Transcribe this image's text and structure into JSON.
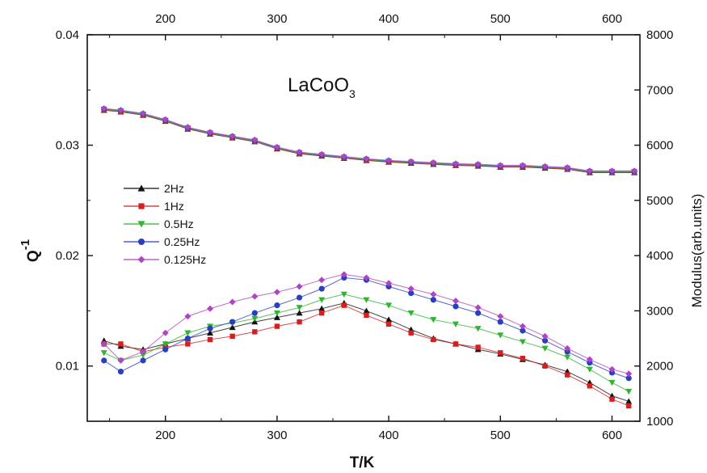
{
  "chart_data": {
    "type": "scatter",
    "title_main": "LaCoO",
    "title_sub": "3",
    "xlabel": "T/K",
    "ylabel_main": "Q",
    "ylabel_sup": "-1",
    "y2label": "Modulus(arb.units)",
    "xlim": [
      130,
      625
    ],
    "ylim": [
      0.005,
      0.04
    ],
    "y2lim": [
      1000,
      8000
    ],
    "xticks": [
      "200",
      "300",
      "400",
      "500",
      "600"
    ],
    "yticks": [
      "0.01",
      "0.02",
      "0.03",
      "0.04"
    ],
    "y2ticks": [
      "1000",
      "2000",
      "3000",
      "4000",
      "5000",
      "6000",
      "7000",
      "8000"
    ],
    "grid": false,
    "legend_position": "center-left",
    "modulus_points": [
      [
        145,
        6650
      ],
      [
        160,
        6620
      ],
      [
        180,
        6560
      ],
      [
        200,
        6450
      ],
      [
        220,
        6310
      ],
      [
        240,
        6220
      ],
      [
        260,
        6150
      ],
      [
        280,
        6080
      ],
      [
        300,
        5950
      ],
      [
        320,
        5860
      ],
      [
        340,
        5820
      ],
      [
        360,
        5780
      ],
      [
        380,
        5740
      ],
      [
        400,
        5710
      ],
      [
        420,
        5690
      ],
      [
        440,
        5670
      ],
      [
        460,
        5650
      ],
      [
        480,
        5640
      ],
      [
        500,
        5620
      ],
      [
        520,
        5620
      ],
      [
        540,
        5600
      ],
      [
        560,
        5580
      ],
      [
        580,
        5520
      ],
      [
        600,
        5520
      ],
      [
        620,
        5520
      ]
    ],
    "series": [
      {
        "name": "2Hz",
        "color": "#111111",
        "marker": "triangle-up",
        "points": [
          [
            145,
            0.0123
          ],
          [
            160,
            0.0118
          ],
          [
            180,
            0.0115
          ],
          [
            200,
            0.012
          ],
          [
            220,
            0.0125
          ],
          [
            240,
            0.013
          ],
          [
            260,
            0.0135
          ],
          [
            280,
            0.014
          ],
          [
            300,
            0.0144
          ],
          [
            320,
            0.0148
          ],
          [
            340,
            0.0152
          ],
          [
            360,
            0.0157
          ],
          [
            380,
            0.015
          ],
          [
            400,
            0.0142
          ],
          [
            420,
            0.0133
          ],
          [
            440,
            0.0125
          ],
          [
            460,
            0.012
          ],
          [
            480,
            0.0115
          ],
          [
            500,
            0.0111
          ],
          [
            520,
            0.0106
          ],
          [
            540,
            0.0101
          ],
          [
            560,
            0.0095
          ],
          [
            580,
            0.0085
          ],
          [
            600,
            0.0073
          ],
          [
            615,
            0.0068
          ]
        ]
      },
      {
        "name": "1Hz",
        "color": "#d42020",
        "marker": "square",
        "points": [
          [
            145,
            0.012
          ],
          [
            160,
            0.012
          ],
          [
            180,
            0.0113
          ],
          [
            200,
            0.0117
          ],
          [
            220,
            0.012
          ],
          [
            240,
            0.0124
          ],
          [
            260,
            0.0127
          ],
          [
            280,
            0.0131
          ],
          [
            300,
            0.0136
          ],
          [
            320,
            0.014
          ],
          [
            340,
            0.0148
          ],
          [
            360,
            0.0155
          ],
          [
            380,
            0.0146
          ],
          [
            400,
            0.0138
          ],
          [
            420,
            0.013
          ],
          [
            440,
            0.0124
          ],
          [
            460,
            0.012
          ],
          [
            480,
            0.0117
          ],
          [
            500,
            0.0112
          ],
          [
            520,
            0.0107
          ],
          [
            540,
            0.01
          ],
          [
            560,
            0.0092
          ],
          [
            580,
            0.0082
          ],
          [
            600,
            0.007
          ],
          [
            615,
            0.0064
          ]
        ]
      },
      {
        "name": "0.5Hz",
        "color": "#2fb52f",
        "marker": "triangle-down",
        "points": [
          [
            145,
            0.0112
          ],
          [
            160,
            0.0105
          ],
          [
            180,
            0.011
          ],
          [
            200,
            0.012
          ],
          [
            220,
            0.013
          ],
          [
            240,
            0.0136
          ],
          [
            260,
            0.0139
          ],
          [
            280,
            0.0143
          ],
          [
            300,
            0.0148
          ],
          [
            320,
            0.0153
          ],
          [
            340,
            0.016
          ],
          [
            360,
            0.0165
          ],
          [
            380,
            0.016
          ],
          [
            400,
            0.0155
          ],
          [
            420,
            0.0148
          ],
          [
            440,
            0.0142
          ],
          [
            460,
            0.0138
          ],
          [
            480,
            0.0134
          ],
          [
            500,
            0.0128
          ],
          [
            520,
            0.0122
          ],
          [
            540,
            0.0116
          ],
          [
            560,
            0.0108
          ],
          [
            580,
            0.0097
          ],
          [
            600,
            0.0085
          ],
          [
            615,
            0.0077
          ]
        ]
      },
      {
        "name": "0.25Hz",
        "color": "#2a3fbf",
        "marker": "circle",
        "points": [
          [
            145,
            0.0105
          ],
          [
            160,
            0.0095
          ],
          [
            180,
            0.0105
          ],
          [
            200,
            0.0115
          ],
          [
            220,
            0.0125
          ],
          [
            240,
            0.0134
          ],
          [
            260,
            0.014
          ],
          [
            280,
            0.0148
          ],
          [
            300,
            0.0155
          ],
          [
            320,
            0.0162
          ],
          [
            340,
            0.017
          ],
          [
            360,
            0.018
          ],
          [
            380,
            0.0178
          ],
          [
            400,
            0.0172
          ],
          [
            420,
            0.0166
          ],
          [
            440,
            0.016
          ],
          [
            460,
            0.0154
          ],
          [
            480,
            0.0148
          ],
          [
            500,
            0.014
          ],
          [
            520,
            0.0132
          ],
          [
            540,
            0.0123
          ],
          [
            560,
            0.0113
          ],
          [
            580,
            0.0103
          ],
          [
            600,
            0.0094
          ],
          [
            615,
            0.0089
          ]
        ]
      },
      {
        "name": "0.125Hz",
        "color": "#b044c4",
        "marker": "diamond",
        "points": [
          [
            145,
            0.012
          ],
          [
            160,
            0.0105
          ],
          [
            180,
            0.0113
          ],
          [
            200,
            0.013
          ],
          [
            220,
            0.0145
          ],
          [
            240,
            0.0152
          ],
          [
            260,
            0.0158
          ],
          [
            280,
            0.0163
          ],
          [
            300,
            0.0167
          ],
          [
            320,
            0.0172
          ],
          [
            340,
            0.0178
          ],
          [
            360,
            0.0183
          ],
          [
            380,
            0.018
          ],
          [
            400,
            0.0175
          ],
          [
            420,
            0.017
          ],
          [
            440,
            0.0165
          ],
          [
            460,
            0.0159
          ],
          [
            480,
            0.0153
          ],
          [
            500,
            0.0145
          ],
          [
            520,
            0.0136
          ],
          [
            540,
            0.0127
          ],
          [
            560,
            0.0116
          ],
          [
            580,
            0.0106
          ],
          [
            600,
            0.0097
          ],
          [
            615,
            0.0093
          ]
        ]
      }
    ]
  }
}
